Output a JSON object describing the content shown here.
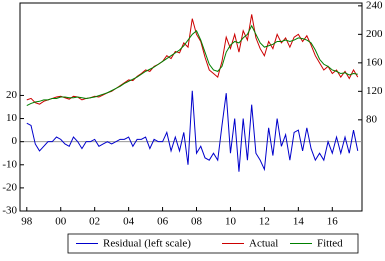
{
  "chart_data": {
    "type": "line",
    "x": [
      1998,
      1998.25,
      1998.5,
      1998.75,
      1999,
      1999.25,
      1999.5,
      1999.75,
      2000,
      2000.25,
      2000.5,
      2000.75,
      2001,
      2001.25,
      2001.5,
      2001.75,
      2002,
      2002.25,
      2002.5,
      2002.75,
      2003,
      2003.25,
      2003.5,
      2003.75,
      2004,
      2004.25,
      2004.5,
      2004.75,
      2005,
      2005.25,
      2005.5,
      2005.75,
      2006,
      2006.25,
      2006.5,
      2006.75,
      2007,
      2007.25,
      2007.5,
      2007.75,
      2008,
      2008.25,
      2008.5,
      2008.75,
      2009,
      2009.25,
      2009.5,
      2009.75,
      2010,
      2010.25,
      2010.5,
      2010.75,
      2011,
      2011.25,
      2011.5,
      2011.75,
      2012,
      2012.25,
      2012.5,
      2012.75,
      2013,
      2013.25,
      2013.5,
      2013.75,
      2014,
      2014.25,
      2014.5,
      2014.75,
      2015,
      2015.25,
      2015.5,
      2015.75,
      2016,
      2016.25,
      2016.5,
      2016.75,
      2017,
      2017.25,
      2017.5
    ],
    "series": [
      {
        "name": "Residual (left scale)",
        "color": "#0000cc",
        "axis": "y",
        "values": [
          8,
          7,
          -1,
          -4,
          -2,
          0,
          0,
          2,
          1,
          -1,
          -2,
          2,
          0,
          -3,
          0,
          0,
          1,
          -2,
          -1,
          0,
          -1,
          0,
          1,
          1,
          2,
          -2,
          1,
          1,
          2,
          -3,
          1,
          0,
          0,
          4,
          -4,
          2,
          -4,
          4,
          -10,
          22,
          -5,
          -2,
          -7,
          -8,
          -5,
          -8,
          7,
          21,
          -5,
          10,
          -13,
          10,
          -8,
          16,
          -5,
          -8,
          -12,
          6,
          -6,
          10,
          -2,
          3,
          -8,
          4,
          5,
          -4,
          6,
          -3,
          -8,
          -5,
          -8,
          0,
          -5,
          2,
          -5,
          2,
          -5,
          5,
          -4
        ]
      },
      {
        "name": "Actual",
        "color": "#cc0000",
        "axis": "y2",
        "values": [
          108,
          110,
          104,
          102,
          106,
          108,
          110,
          112,
          113,
          111,
          109,
          113,
          112,
          108,
          110,
          111,
          113,
          112,
          115,
          118,
          120,
          124,
          128,
          132,
          136,
          135,
          141,
          145,
          150,
          148,
          155,
          158,
          162,
          170,
          166,
          176,
          174,
          188,
          182,
          222,
          200,
          190,
          168,
          150,
          145,
          140,
          162,
          196,
          180,
          200,
          175,
          205,
          192,
          228,
          195,
          180,
          170,
          190,
          180,
          200,
          188,
          195,
          182,
          196,
          200,
          190,
          198,
          185,
          170,
          160,
          150,
          155,
          145,
          150,
          140,
          148,
          138,
          150,
          140
        ]
      },
      {
        "name": "Fitted",
        "color": "#008000",
        "axis": "y2",
        "values": [
          100,
          103,
          105,
          106,
          108,
          108,
          110,
          110,
          112,
          112,
          111,
          111,
          112,
          111,
          110,
          111,
          112,
          114,
          116,
          118,
          121,
          124,
          127,
          131,
          134,
          137,
          140,
          144,
          148,
          151,
          154,
          158,
          162,
          166,
          170,
          174,
          178,
          184,
          192,
          200,
          205,
          192,
          175,
          158,
          150,
          148,
          155,
          175,
          185,
          190,
          188,
          195,
          200,
          212,
          200,
          188,
          182,
          184,
          186,
          190,
          190,
          192,
          190,
          192,
          195,
          194,
          192,
          188,
          178,
          165,
          158,
          155,
          150,
          148,
          145,
          146,
          143,
          145,
          144
        ]
      }
    ],
    "xlim": [
      1997.6,
      2017.75
    ],
    "xticks": [
      {
        "value": 1998,
        "label": "98"
      },
      {
        "value": 2000,
        "label": "00"
      },
      {
        "value": 2002,
        "label": "02"
      },
      {
        "value": 2004,
        "label": "04"
      },
      {
        "value": 2006,
        "label": "06"
      },
      {
        "value": 2008,
        "label": "08"
      },
      {
        "value": 2010,
        "label": "10"
      },
      {
        "value": 2012,
        "label": "12"
      },
      {
        "value": 2014,
        "label": "14"
      },
      {
        "value": 2016,
        "label": "16"
      }
    ],
    "ylim": [
      -30,
      60
    ],
    "yticks": [
      -30,
      -20,
      -10,
      0,
      10,
      20
    ],
    "y2lim": [
      -48,
      244
    ],
    "y2ticks": [
      80,
      120,
      160,
      200,
      240
    ]
  }
}
